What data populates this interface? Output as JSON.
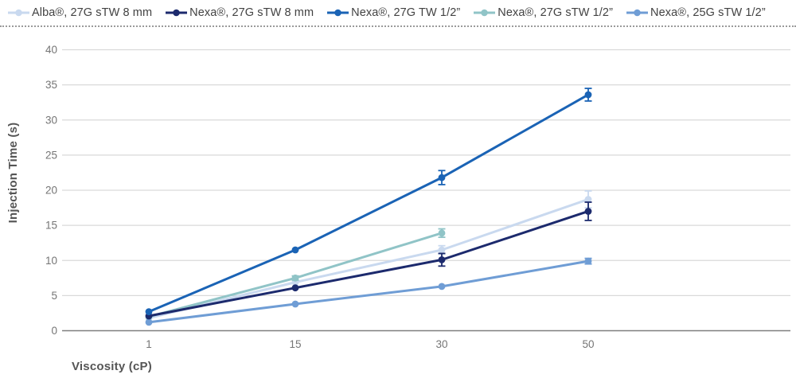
{
  "legend_note": "legend entries mirror chart_data.series names/colors",
  "chart_data": {
    "type": "line",
    "title": "",
    "xlabel": "Viscosity (cP)",
    "ylabel": "Injection Time (s)",
    "categories": [
      "1",
      "15",
      "30",
      "50"
    ],
    "ylim": [
      0,
      40
    ],
    "ytick_step": 5,
    "grid": "horizontal",
    "legend_position": "top",
    "series": [
      {
        "name": "Alba®, 27G sTW 8 mm",
        "color": "#c9d9ef",
        "values": [
          1.8,
          6.9,
          11.5,
          18.7
        ],
        "errors": [
          0,
          0,
          0.6,
          1.2
        ]
      },
      {
        "name": "Nexa®, 27G sTW 8 mm",
        "color": "#1c2a6d",
        "values": [
          2.1,
          6.1,
          10.1,
          17.0
        ],
        "errors": [
          0,
          0,
          0.9,
          1.3
        ]
      },
      {
        "name": "Nexa®, 27G TW 1/2”",
        "color": "#1a63b5",
        "values": [
          2.7,
          11.5,
          21.8,
          33.6
        ],
        "errors": [
          0,
          0,
          1.0,
          0.9
        ]
      },
      {
        "name": "Nexa®, 27G sTW 1/2”",
        "color": "#90c4c7",
        "values": [
          2.0,
          7.5,
          13.9,
          null
        ],
        "errors": [
          0,
          0.3,
          0.6,
          0
        ]
      },
      {
        "name": "Nexa®, 25G sTW 1/2”",
        "color": "#6f9dd5",
        "values": [
          1.2,
          3.8,
          6.3,
          9.9
        ],
        "errors": [
          0,
          0,
          0,
          0.4
        ]
      }
    ],
    "colors": {
      "gridline": "#d9d9d9",
      "axis_line": "#7f7f7f",
      "tick_text": "#757575",
      "axis_title": "#555555",
      "legend_text": "#424242",
      "divider_dots": "#9b9b9b"
    }
  }
}
